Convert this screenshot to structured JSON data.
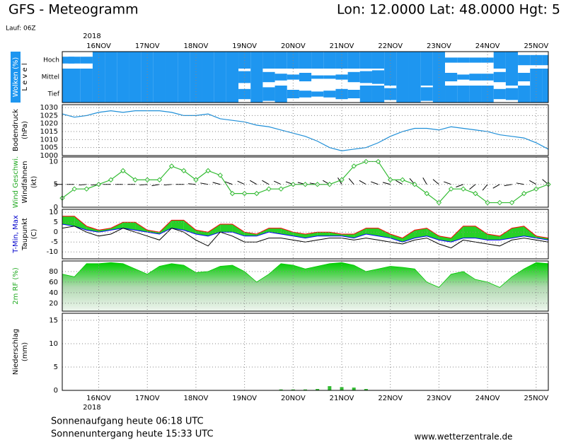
{
  "header": {
    "title": "GFS - Meteogramm",
    "location": "Lon: 12.0000 Lat: 48.0000 Hgt: 5",
    "run": "Lauf: 06Z",
    "sunrise": "Sonnenaufgang heute 06:18 UTC",
    "sunset": "Sonnenuntergang heute 15:33 UTC",
    "website": "www.wetterzentrale.de"
  },
  "chart_data": [
    {
      "type": "cloud",
      "xlabel": "2018",
      "ylabel": [
        "Wolken (%)",
        "L e v e l"
      ],
      "categories": [
        "Hoch",
        "Mittel",
        "Tief"
      ],
      "color": "#1e96f0",
      "x": [
        0,
        6,
        12,
        18,
        24,
        30,
        36,
        42,
        48,
        54,
        60,
        66,
        72,
        78,
        84,
        90,
        96,
        102,
        108,
        114,
        120,
        126,
        132,
        138,
        144,
        150,
        156,
        162,
        168,
        174,
        180,
        186,
        192,
        198,
        204,
        210,
        216,
        222,
        228,
        234,
        240
      ],
      "xlim": [
        0,
        240
      ],
      "xticks": [
        {
          "value": 18,
          "label": "16NOV"
        },
        {
          "value": 42,
          "label": "17NOV"
        },
        {
          "value": 66,
          "label": "18NOV"
        },
        {
          "value": 90,
          "label": "19NOV"
        },
        {
          "value": 114,
          "label": "20NOV"
        },
        {
          "value": 138,
          "label": "21NOV"
        },
        {
          "value": 162,
          "label": "22NOV"
        },
        {
          "value": 186,
          "label": "23NOV"
        },
        {
          "value": 210,
          "label": "24NOV"
        },
        {
          "value": 234,
          "label": "25NOV"
        }
      ],
      "series": [
        {
          "values": [
            40,
            40,
            40,
            100,
            100,
            100,
            100,
            100,
            100,
            100,
            100,
            100,
            100,
            100,
            100,
            100,
            100,
            100,
            100,
            100,
            100,
            100,
            100,
            100,
            100,
            100,
            100,
            100,
            100,
            100,
            100,
            100,
            30,
            30,
            30,
            30,
            100,
            100,
            60,
            60,
            60
          ]
        },
        {
          "values": [
            100,
            100,
            100,
            100,
            100,
            100,
            100,
            100,
            100,
            100,
            100,
            100,
            100,
            100,
            100,
            70,
            100,
            60,
            40,
            30,
            50,
            20,
            20,
            30,
            60,
            70,
            80,
            100,
            100,
            100,
            100,
            100,
            50,
            30,
            40,
            40,
            60,
            100,
            50,
            100,
            100
          ]
        },
        {
          "values": [
            100,
            100,
            100,
            100,
            100,
            100,
            100,
            100,
            100,
            100,
            100,
            100,
            100,
            100,
            100,
            60,
            100,
            80,
            100,
            50,
            40,
            30,
            40,
            60,
            50,
            100,
            100,
            70,
            100,
            100,
            80,
            100,
            100,
            100,
            100,
            100,
            60,
            70,
            100,
            100,
            100
          ]
        }
      ]
    },
    {
      "type": "line",
      "ylabel": [
        "Bodendruck",
        "(hPa)"
      ],
      "color": "#1f8fd8",
      "x": [
        0,
        6,
        12,
        18,
        24,
        30,
        36,
        42,
        48,
        54,
        60,
        66,
        72,
        78,
        84,
        90,
        96,
        102,
        108,
        114,
        120,
        126,
        132,
        138,
        144,
        150,
        156,
        162,
        168,
        174,
        180,
        186,
        192,
        198,
        204,
        210,
        216,
        222,
        228,
        234,
        240
      ],
      "xlim": [
        0,
        240
      ],
      "xticks": [
        {
          "value": 18,
          "label": "16NOV"
        },
        {
          "value": 42,
          "label": "17NOV"
        },
        {
          "value": 66,
          "label": "18NOV"
        },
        {
          "value": 90,
          "label": "19NOV"
        },
        {
          "value": 114,
          "label": "20NOV"
        },
        {
          "value": 138,
          "label": "21NOV"
        },
        {
          "value": 162,
          "label": "22NOV"
        },
        {
          "value": 186,
          "label": "23NOV"
        },
        {
          "value": 210,
          "label": "24NOV"
        },
        {
          "value": 234,
          "label": "25NOV"
        }
      ],
      "ylim": [
        1000,
        1031.8
      ],
      "yticks": [
        1000,
        1005,
        1010,
        1015,
        1020,
        1025,
        1030
      ],
      "grid": true,
      "values": [
        1026,
        1024,
        1025,
        1027,
        1028,
        1027,
        1028,
        1028,
        1028,
        1027,
        1025,
        1025,
        1026,
        1023,
        1022,
        1021,
        1019,
        1018,
        1016,
        1014,
        1012,
        1009,
        1005,
        1003,
        1004,
        1005,
        1008,
        1012,
        1015,
        1017,
        1017,
        1016,
        1018,
        1017,
        1016,
        1015,
        1013,
        1012,
        1011,
        1008,
        1004
      ]
    },
    {
      "type": "wind",
      "ylabel": [
        "Wind Geschwi.",
        "Windfahnen",
        "(kt)"
      ],
      "color": "#33bb33",
      "x": [
        0,
        6,
        12,
        18,
        24,
        30,
        36,
        42,
        48,
        54,
        60,
        66,
        72,
        78,
        84,
        90,
        96,
        102,
        108,
        114,
        120,
        126,
        132,
        138,
        144,
        150,
        156,
        162,
        168,
        174,
        180,
        186,
        192,
        198,
        204,
        210,
        216,
        222,
        228,
        234,
        240
      ],
      "xlim": [
        0,
        240
      ],
      "xticks": [
        {
          "value": 18,
          "label": "16NOV"
        },
        {
          "value": 42,
          "label": "17NOV"
        },
        {
          "value": 66,
          "label": "18NOV"
        },
        {
          "value": 90,
          "label": "19NOV"
        },
        {
          "value": 114,
          "label": "20NOV"
        },
        {
          "value": 138,
          "label": "21NOV"
        },
        {
          "value": 162,
          "label": "22NOV"
        },
        {
          "value": 186,
          "label": "23NOV"
        },
        {
          "value": 210,
          "label": "24NOV"
        },
        {
          "value": 234,
          "label": "25NOV"
        }
      ],
      "ylim": [
        0,
        11
      ],
      "yticks": [
        0,
        5,
        10
      ],
      "grid": true,
      "values": [
        2,
        4,
        4,
        5,
        6,
        8,
        6,
        6,
        6,
        9,
        8,
        6,
        8,
        7,
        3,
        3,
        3,
        4,
        4,
        5,
        5,
        5,
        5,
        6,
        9,
        10,
        10,
        6,
        6,
        5,
        3,
        1,
        4,
        4,
        3,
        1,
        1,
        1,
        3,
        4,
        5
      ],
      "direction": [
        270,
        270,
        265,
        265,
        270,
        270,
        270,
        265,
        260,
        265,
        270,
        275,
        280,
        285,
        290,
        295,
        300,
        300,
        295,
        290,
        285,
        280,
        300,
        330,
        320,
        300,
        290,
        285,
        300,
        320,
        330,
        310,
        290,
        250,
        230,
        220,
        240,
        260,
        280,
        300,
        310
      ]
    },
    {
      "type": "temperature",
      "ylabel": [
        "T-Min, Max",
        "Taupunkt",
        "(C)"
      ],
      "fill": "#00c800",
      "x": [
        0,
        6,
        12,
        18,
        24,
        30,
        36,
        42,
        48,
        54,
        60,
        66,
        72,
        78,
        84,
        90,
        96,
        102,
        108,
        114,
        120,
        126,
        132,
        138,
        144,
        150,
        156,
        162,
        168,
        174,
        180,
        186,
        192,
        198,
        204,
        210,
        216,
        222,
        228,
        234,
        240
      ],
      "xlim": [
        0,
        240
      ],
      "xticks": [
        {
          "value": 18,
          "label": "16NOV"
        },
        {
          "value": 42,
          "label": "17NOV"
        },
        {
          "value": 66,
          "label": "18NOV"
        },
        {
          "value": 90,
          "label": "19NOV"
        },
        {
          "value": 114,
          "label": "20NOV"
        },
        {
          "value": 138,
          "label": "21NOV"
        },
        {
          "value": 162,
          "label": "22NOV"
        },
        {
          "value": 186,
          "label": "23NOV"
        },
        {
          "value": 210,
          "label": "24NOV"
        },
        {
          "value": 234,
          "label": "25NOV"
        }
      ],
      "ylim": [
        -13.5,
        11.5
      ],
      "yticks": [
        -10,
        -5,
        0,
        5,
        10
      ],
      "grid": true,
      "series": [
        {
          "color": "#ff0000",
          "values": [
            8,
            8,
            3,
            1,
            2,
            5,
            5,
            1,
            0,
            6,
            6,
            1,
            0,
            4,
            4,
            0,
            -1,
            2,
            2,
            0,
            -1,
            0,
            0,
            -1,
            -1,
            2,
            2,
            -1,
            -3,
            1,
            2,
            -2,
            -3,
            3,
            3,
            -1,
            -2,
            2,
            3,
            -2,
            -3
          ]
        },
        {
          "color": "#0000ff",
          "values": [
            4,
            3,
            1,
            0,
            1,
            2,
            1,
            0,
            -1,
            2,
            1,
            -1,
            -2,
            0,
            0,
            -2,
            -2,
            0,
            -1,
            -2,
            -3,
            -2,
            -2,
            -2,
            -3,
            -1,
            -2,
            -3,
            -5,
            -3,
            -2,
            -4,
            -5,
            -3,
            -3,
            -4,
            -4,
            -3,
            -2,
            -3,
            -4
          ]
        },
        {
          "color": "#000000",
          "values": [
            2,
            3,
            0,
            -2,
            -1,
            2,
            0,
            -2,
            -4,
            2,
            0,
            -4,
            -7,
            0,
            -2,
            -5,
            -5,
            -3,
            -3,
            -4,
            -5,
            -4,
            -3,
            -3,
            -4,
            -3,
            -4,
            -5,
            -6,
            -4,
            -3,
            -6,
            -8,
            -4,
            -5,
            -6,
            -7,
            -4,
            -3,
            -4,
            -5
          ]
        }
      ]
    },
    {
      "type": "area",
      "ylabel": [
        "2m RF (%)"
      ],
      "color": "#00c800",
      "x": [
        0,
        6,
        12,
        18,
        24,
        30,
        36,
        42,
        48,
        54,
        60,
        66,
        72,
        78,
        84,
        90,
        96,
        102,
        108,
        114,
        120,
        126,
        132,
        138,
        144,
        150,
        156,
        162,
        168,
        174,
        180,
        186,
        192,
        198,
        204,
        210,
        216,
        222,
        228,
        234,
        240
      ],
      "xlim": [
        0,
        240
      ],
      "xticks": [
        {
          "value": 18,
          "label": "16NOV"
        },
        {
          "value": 42,
          "label": "17NOV"
        },
        {
          "value": 66,
          "label": "18NOV"
        },
        {
          "value": 90,
          "label": "19NOV"
        },
        {
          "value": 114,
          "label": "20NOV"
        },
        {
          "value": 138,
          "label": "21NOV"
        },
        {
          "value": 162,
          "label": "22NOV"
        },
        {
          "value": 186,
          "label": "23NOV"
        },
        {
          "value": 210,
          "label": "24NOV"
        },
        {
          "value": 234,
          "label": "25NOV"
        }
      ],
      "ylim": [
        5,
        100
      ],
      "yticks": [
        20,
        40,
        60,
        80
      ],
      "grid": true,
      "values": [
        75,
        70,
        95,
        95,
        97,
        95,
        85,
        75,
        90,
        95,
        92,
        78,
        80,
        90,
        92,
        80,
        60,
        75,
        95,
        92,
        85,
        90,
        95,
        97,
        92,
        80,
        85,
        90,
        88,
        85,
        60,
        50,
        75,
        80,
        65,
        60,
        50,
        70,
        85,
        97,
        95
      ]
    },
    {
      "type": "bar",
      "xlabel": "2018",
      "ylabel": [
        "Niederschlag",
        "(mm)"
      ],
      "color": "#33bb33",
      "x": [
        0,
        6,
        12,
        18,
        24,
        30,
        36,
        42,
        48,
        54,
        60,
        66,
        72,
        78,
        84,
        90,
        96,
        102,
        108,
        114,
        120,
        126,
        132,
        138,
        144,
        150,
        156,
        162,
        168,
        174,
        180,
        186,
        192,
        198,
        204,
        210,
        216,
        222,
        228,
        234,
        240
      ],
      "xlim": [
        0,
        240
      ],
      "xticks": [
        {
          "value": 18,
          "label": "16NOV"
        },
        {
          "value": 42,
          "label": "17NOV"
        },
        {
          "value": 66,
          "label": "18NOV"
        },
        {
          "value": 90,
          "label": "19NOV"
        },
        {
          "value": 114,
          "label": "20NOV"
        },
        {
          "value": 138,
          "label": "21NOV"
        },
        {
          "value": 162,
          "label": "22NOV"
        },
        {
          "value": 186,
          "label": "23NOV"
        },
        {
          "value": 210,
          "label": "24NOV"
        },
        {
          "value": 234,
          "label": "25NOV"
        }
      ],
      "ylim": [
        0,
        16.5
      ],
      "yticks": [
        0,
        5,
        10,
        15
      ],
      "grid": true,
      "values": [
        0,
        0,
        0,
        0,
        0,
        0,
        0,
        0,
        0,
        0,
        0,
        0,
        0,
        0,
        0,
        0,
        0,
        0,
        0.2,
        0.2,
        0.2,
        0.3,
        0.9,
        0.7,
        0.6,
        0.3,
        0,
        0,
        0,
        0,
        0,
        0,
        0,
        0,
        0,
        0,
        0,
        0,
        0,
        0,
        0
      ]
    }
  ]
}
